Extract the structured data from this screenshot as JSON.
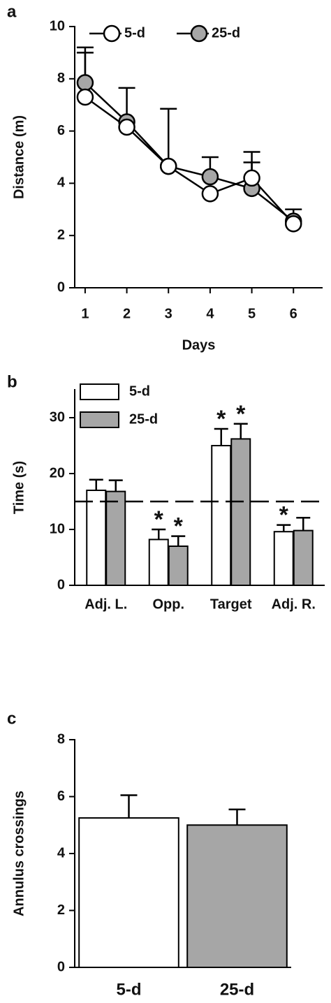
{
  "chart_data": [
    {
      "type": "line",
      "panel": "a",
      "ylabel": "Distance (m)",
      "xlabel": "Days",
      "x": [
        1,
        2,
        3,
        4,
        5,
        6
      ],
      "xlim": [
        0.75,
        6.7
      ],
      "xticks": [
        1,
        2,
        3,
        4,
        5,
        6
      ],
      "ylim": [
        0,
        10
      ],
      "yticks": [
        0,
        2,
        4,
        6,
        8,
        10
      ],
      "series": [
        {
          "name": "25-d",
          "color": "#a6a6a6",
          "values": [
            7.85,
            6.35,
            4.65,
            4.25,
            3.8,
            2.55
          ],
          "errors": [
            1.35,
            1.3,
            2.2,
            0.75,
            1.0,
            0.45
          ]
        },
        {
          "name": "5-d",
          "color": "#ffffff",
          "values": [
            7.3,
            6.15,
            4.65,
            3.6,
            4.2,
            2.45
          ],
          "errors": [
            1.7,
            null,
            null,
            null,
            1.0,
            null
          ]
        }
      ]
    },
    {
      "type": "bar",
      "panel": "b",
      "ylabel": "Time (s)",
      "categories": [
        "Adj. L.",
        "Opp.",
        "Target",
        "Adj. R."
      ],
      "ylim": [
        0,
        35
      ],
      "yticks": [
        0,
        10,
        20,
        30
      ],
      "reference_line": 15,
      "series": [
        {
          "name": "5-d",
          "color": "#ffffff",
          "values": [
            17,
            8.2,
            25,
            9.6
          ],
          "errors": [
            1.9,
            1.8,
            3.0,
            1.2
          ],
          "labels": [
            null,
            "*",
            "*",
            "*"
          ]
        },
        {
          "name": "25-d",
          "color": "#a6a6a6",
          "values": [
            16.8,
            7.0,
            26.2,
            9.8
          ],
          "errors": [
            2.0,
            1.8,
            2.7,
            2.3
          ],
          "labels": [
            null,
            "*",
            "*",
            null
          ]
        }
      ]
    },
    {
      "type": "bar",
      "panel": "c",
      "ylabel": "Annulus crossings",
      "categories": [
        "5-d",
        "25-d"
      ],
      "ylim": [
        0,
        8
      ],
      "yticks": [
        0,
        2,
        4,
        6,
        8
      ],
      "values": [
        5.25,
        5.0
      ],
      "errors": [
        0.8,
        0.55
      ],
      "colors": [
        "#ffffff",
        "#a6a6a6"
      ]
    }
  ]
}
